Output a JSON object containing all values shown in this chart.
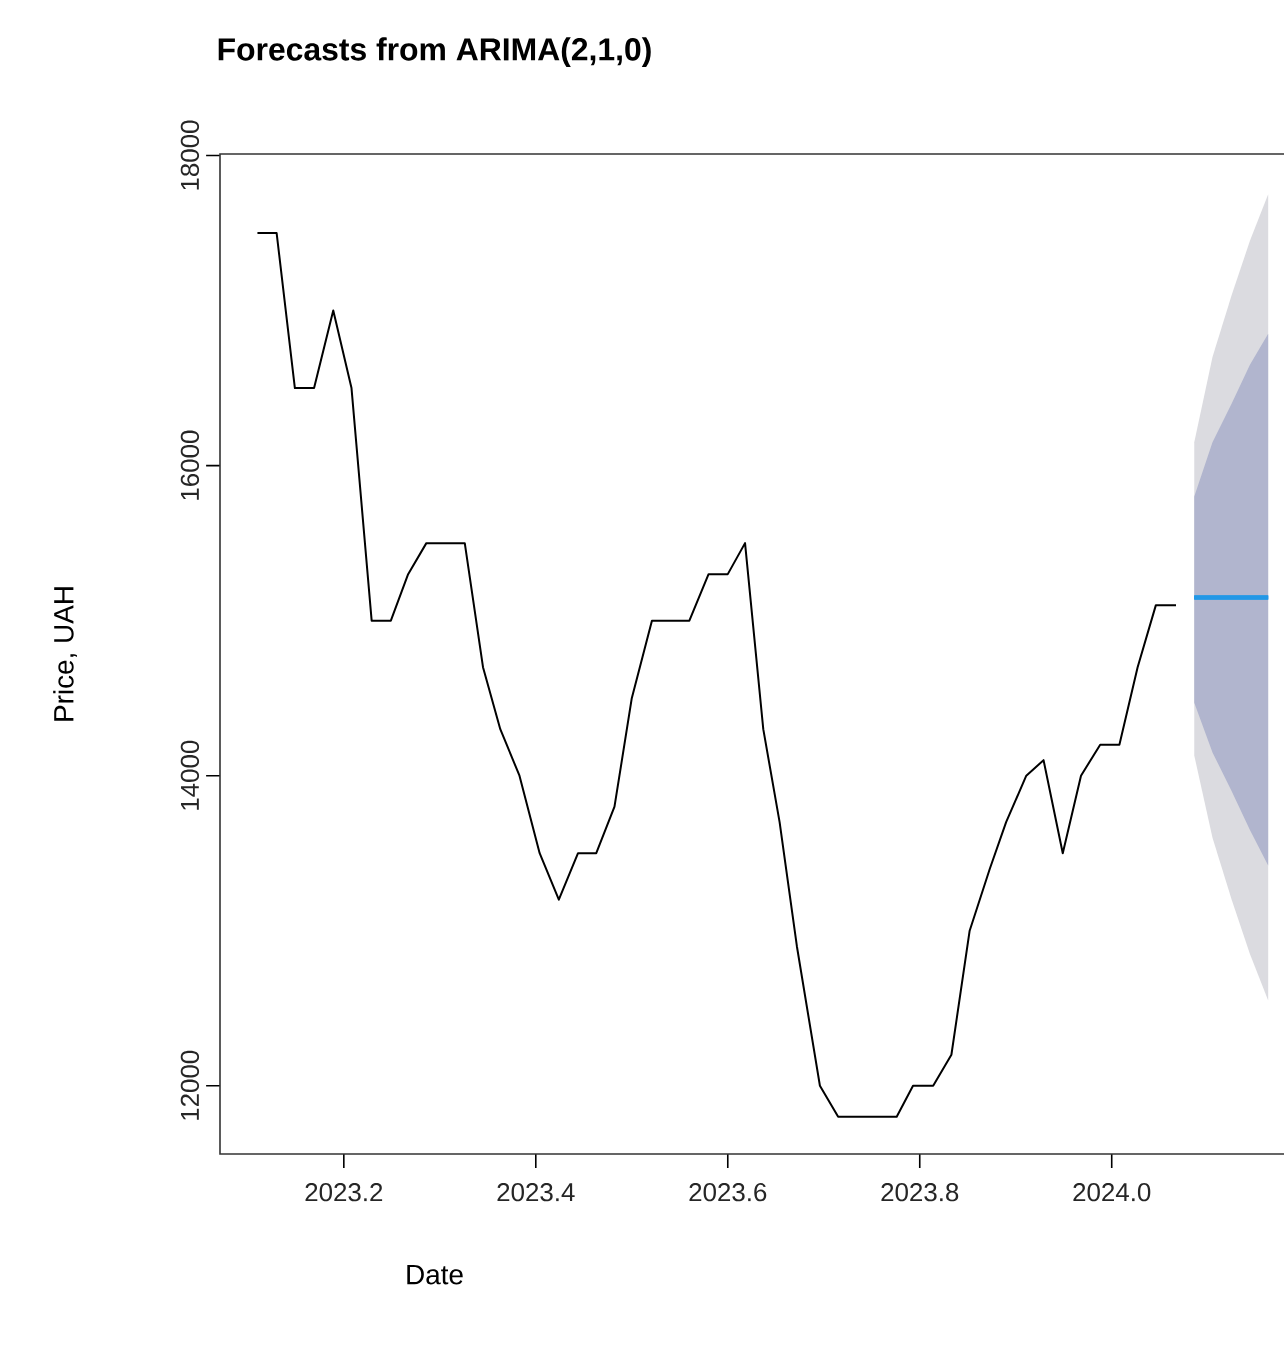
{
  "chart_data": {
    "type": "line",
    "title": "Forecasts from ARIMA(2,1,0)",
    "xlabel": "Date",
    "ylabel": "Price, UAH",
    "xlim": [
      2023.071,
      2024.217
    ],
    "ylim": [
      11560,
      18010
    ],
    "xticks": [
      2023.2,
      2023.4,
      2023.6,
      2023.8,
      {
        "value": 2024.0,
        "label": "2024.0"
      }
    ],
    "yticks": [
      12000,
      14000,
      16000,
      18000
    ],
    "grid": false,
    "series": [
      {
        "color": "#000000",
        "x": [
          2023.11,
          2023.13,
          2023.149,
          2023.169,
          2023.189,
          2023.208,
          2023.229,
          2023.249,
          2023.267,
          2023.286,
          2023.326,
          2023.345,
          2023.363,
          2023.383,
          2023.404,
          2023.424,
          2023.444,
          2023.463,
          2023.482,
          2023.5,
          2023.521,
          2023.56,
          2023.58,
          2023.6,
          2023.618,
          2023.637,
          2023.654,
          2023.672,
          2023.696,
          2023.715,
          2023.776,
          2023.793,
          2023.814,
          2023.833,
          2023.852,
          2023.873,
          2023.89,
          2023.911,
          2023.929,
          2023.949,
          2023.968,
          2023.988,
          2024.008,
          2024.027,
          2024.046,
          2024.067
        ],
        "values": [
          17500,
          17500,
          16500,
          16500,
          17000,
          16500,
          15000,
          15000,
          15300,
          15500,
          15500,
          14700,
          14300,
          14000,
          13500,
          13200,
          13500,
          13500,
          13800,
          14500,
          15000,
          15000,
          15300,
          15300,
          15500,
          14300,
          13700,
          12900,
          12000,
          11800,
          11800,
          12000,
          12000,
          12200,
          13000,
          13400,
          13700,
          14000,
          14100,
          13500,
          14000,
          14200,
          14200,
          14700,
          15100,
          15100
        ]
      },
      {
        "color": "#2297e6",
        "x": [
          2024.086,
          2024.105,
          2024.125,
          2024.144,
          2024.163
        ],
        "values": [
          15150,
          15150,
          15150,
          15150,
          15150
        ],
        "lower": [
          14130,
          13600,
          13200,
          12850,
          12550
        ],
        "upper": [
          16150,
          16700,
          17100,
          17450,
          17750
        ]
      },
      {
        "color": "#2297e6",
        "x": [
          2024.086,
          2024.105,
          2024.125,
          2024.144,
          2024.163
        ],
        "values": [
          15150,
          15150,
          15150,
          15150,
          15150
        ],
        "lower": [
          14470,
          14150,
          13900,
          13650,
          13420
        ],
        "upper": [
          15800,
          16150,
          16400,
          16650,
          16850
        ]
      },
      {
        "color": "#2297e6",
        "x": [
          2024.086,
          2024.105,
          2024.125,
          2024.144,
          2024.163
        ],
        "values": [
          15150,
          15150,
          15150,
          15150,
          15150
        ]
      }
    ]
  }
}
